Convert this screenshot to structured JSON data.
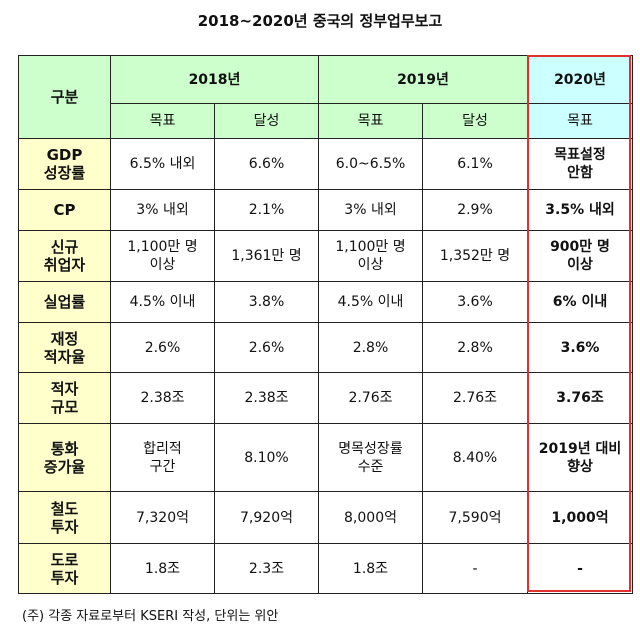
{
  "title": "2018~2020년 중국의 정부업무보고",
  "header": {
    "category": "구분",
    "years": [
      "2018년",
      "2019년",
      "2020년"
    ],
    "sub": [
      "목표",
      "달성",
      "목표",
      "달성",
      "목표"
    ]
  },
  "rows": [
    {
      "label": "GDP\n성장률",
      "cells": [
        "6.5% 내외",
        "6.6%",
        "6.0~6.5%",
        "6.1%",
        "목표설정\n안함"
      ]
    },
    {
      "label": "CP",
      "cells": [
        "3% 내외",
        "2.1%",
        "3% 내외",
        "2.9%",
        "3.5% 내외"
      ]
    },
    {
      "label": "신규\n취업자",
      "cells": [
        "1,100만 명\n이상",
        "1,361만 명",
        "1,100만 명\n이상",
        "1,352만 명",
        "900만 명\n이상"
      ]
    },
    {
      "label": "실업률",
      "cells": [
        "4.5% 이내",
        "3.8%",
        "4.5% 이내",
        "3.6%",
        "6% 이내"
      ]
    },
    {
      "label": "재정\n적자율",
      "cells": [
        "2.6%",
        "2.6%",
        "2.8%",
        "2.8%",
        "3.6%"
      ]
    },
    {
      "label": "적자\n규모",
      "cells": [
        "2.38조",
        "2.38조",
        "2.76조",
        "2.76조",
        "3.76조"
      ]
    },
    {
      "label": "통화\n증가율",
      "cells": [
        "합리적\n구간",
        "8.10%",
        "명목성장률\n수준",
        "8.40%",
        "2019년 대비\n향상"
      ]
    },
    {
      "label": "철도\n투자",
      "cells": [
        "7,320억",
        "7,920억",
        "8,000억",
        "7,590억",
        "1,000억"
      ]
    },
    {
      "label": "도로\n투자",
      "cells": [
        "1.8조",
        "2.3조",
        "1.8조",
        "-",
        "-"
      ]
    }
  ],
  "note": "(주) 각종 자료로부터 KSERI 작성, 단위는 위안",
  "colors": {
    "header": "#ccffcc",
    "header_2020": "#ccffff",
    "row_label": "#ffffcc",
    "highlight_border": "#e03030"
  }
}
